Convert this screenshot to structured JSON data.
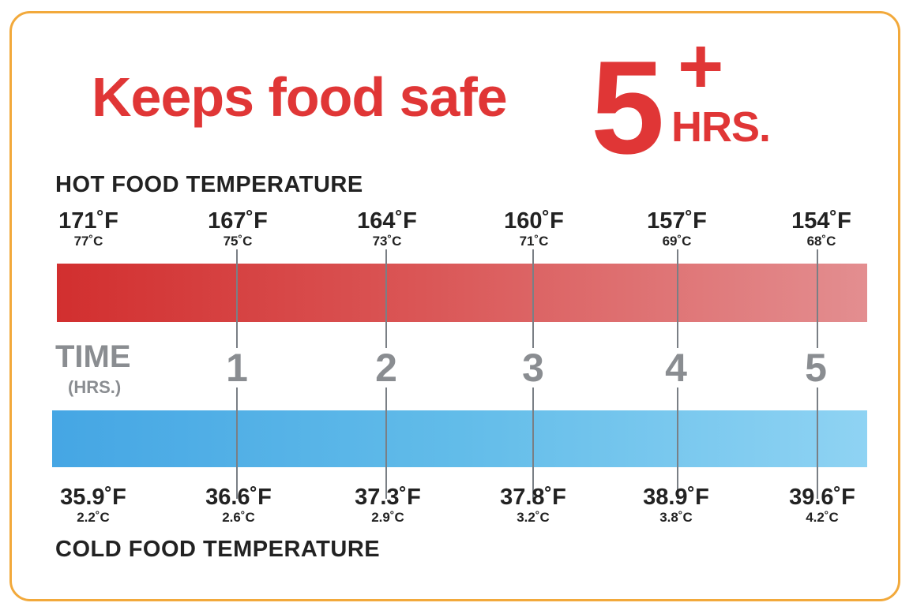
{
  "headline": "Keeps food safe",
  "badge": {
    "number": "5",
    "plus": "+",
    "unit": "HRS."
  },
  "hot": {
    "title": "HOT FOOD TEMPERATURE",
    "colors": [
      "#d22f2f",
      "#e38e90"
    ],
    "readings": [
      {
        "f": "171˚F",
        "c": "77˚C"
      },
      {
        "f": "167˚F",
        "c": "75˚C"
      },
      {
        "f": "164˚F",
        "c": "73˚C"
      },
      {
        "f": "160˚F",
        "c": "71˚C"
      },
      {
        "f": "157˚F",
        "c": "69˚C"
      },
      {
        "f": "154˚F",
        "c": "68˚C"
      }
    ]
  },
  "time": {
    "label": "TIME",
    "unit": "(HRS.)",
    "hours": [
      "1",
      "2",
      "3",
      "4",
      "5"
    ]
  },
  "cold": {
    "title": "COLD FOOD TEMPERATURE",
    "colors": [
      "#45a6e4",
      "#8fd3f3"
    ],
    "readings": [
      {
        "f": "35.9˚F",
        "c": "2.2˚C"
      },
      {
        "f": "36.6˚F",
        "c": "2.6˚C"
      },
      {
        "f": "37.3˚F",
        "c": "2.9˚C"
      },
      {
        "f": "37.8˚F",
        "c": "3.2˚C"
      },
      {
        "f": "38.9˚F",
        "c": "3.8˚C"
      },
      {
        "f": "39.6˚F",
        "c": "4.2˚C"
      }
    ]
  },
  "border_color": "#f2a93b",
  "accent_color": "#e03636"
}
